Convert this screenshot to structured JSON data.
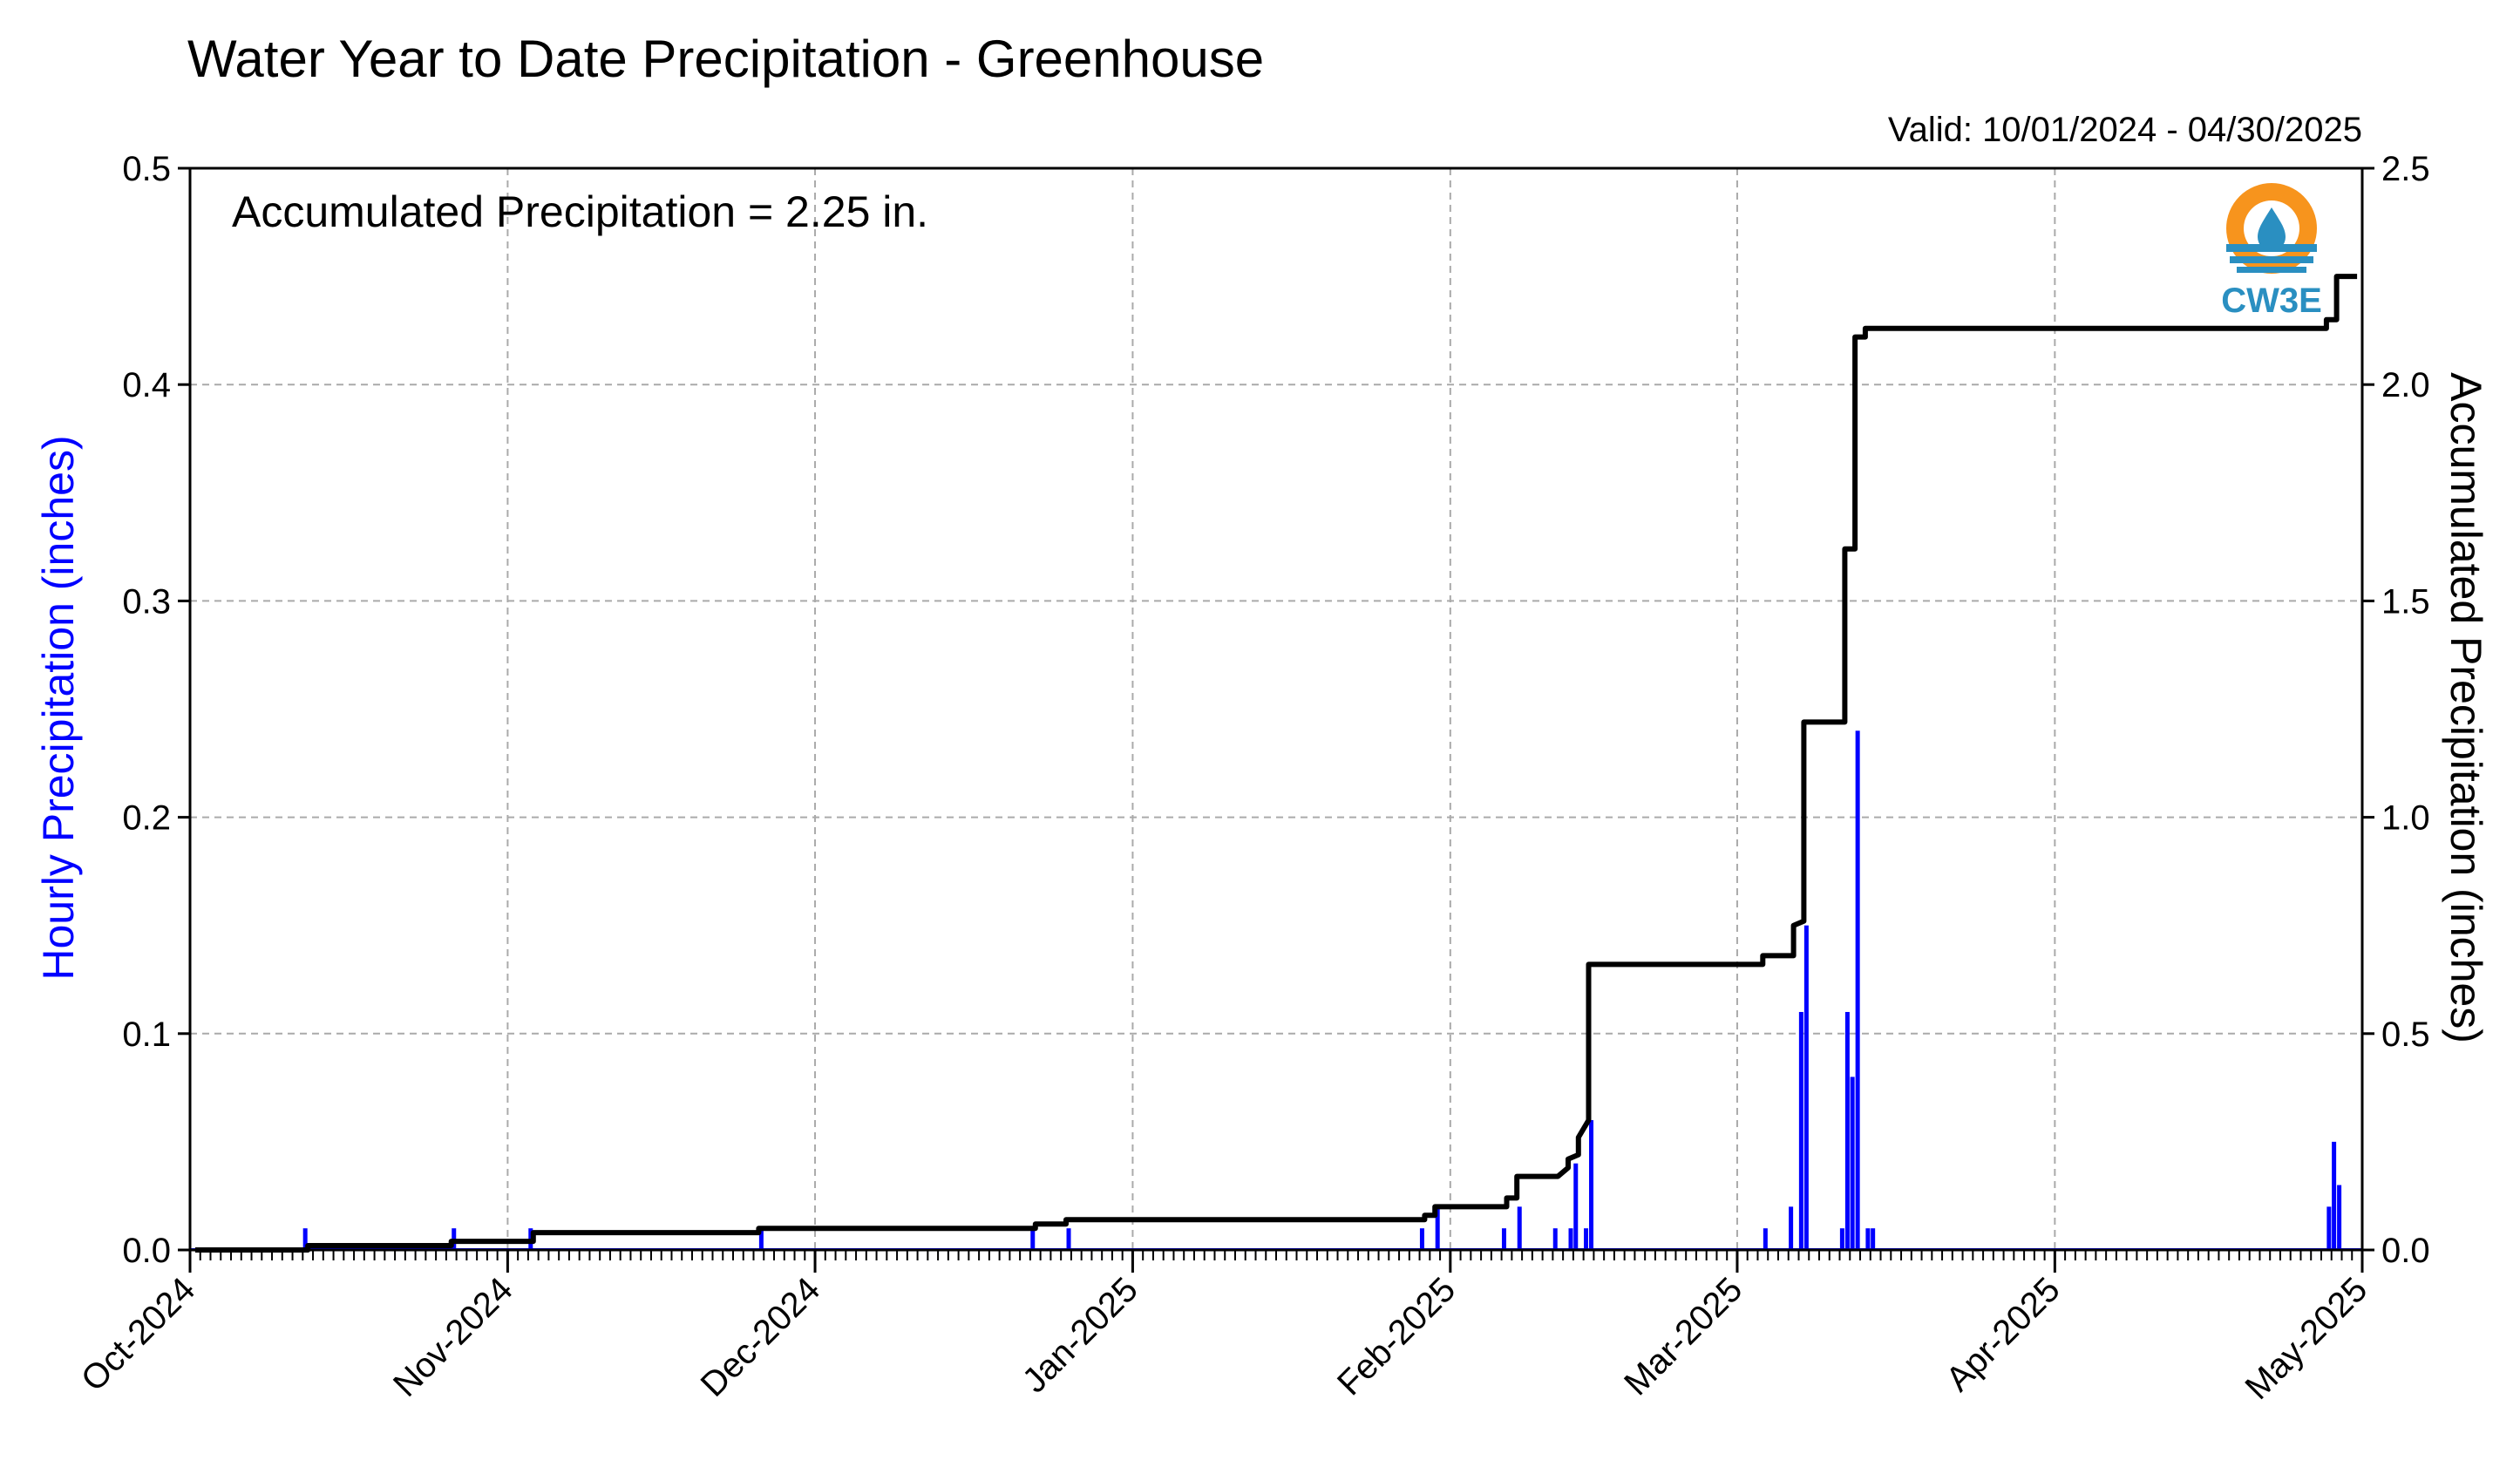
{
  "chart_data": {
    "type": "bar+line",
    "title": "Water Year to Date Precipitation - Greenhouse",
    "valid_range": "Valid: 10/01/2024 - 04/30/2025",
    "annotation": "Accumulated Precipitation = 2.25 in.",
    "ylabel_left": "Hourly Precipitation (inches)",
    "ylabel_right": "Accumulated Precipitation (inches)",
    "ylim_left": [
      0,
      0.5
    ],
    "ylim_right": [
      0,
      2.5
    ],
    "yticks_left": [
      "0.0",
      "0.1",
      "0.2",
      "0.3",
      "0.4",
      "0.5"
    ],
    "yticks_right": [
      "0.0",
      "0.5",
      "1.0",
      "1.5",
      "2.0",
      "2.5"
    ],
    "xlim": [
      "2024-10-01",
      "2025-05-01"
    ],
    "xticks": [
      {
        "date": "2024-10-01",
        "label": "Oct-2024"
      },
      {
        "date": "2024-11-01",
        "label": "Nov-2024"
      },
      {
        "date": "2024-12-01",
        "label": "Dec-2024"
      },
      {
        "date": "2025-01-01",
        "label": "Jan-2025"
      },
      {
        "date": "2025-02-01",
        "label": "Feb-2025"
      },
      {
        "date": "2025-03-01",
        "label": "Mar-2025"
      },
      {
        "date": "2025-04-01",
        "label": "Apr-2025"
      },
      {
        "date": "2025-05-01",
        "label": "May-2025"
      }
    ],
    "grid": true,
    "colors": {
      "hourly": "#0000ff",
      "accumulated": "#000000"
    },
    "hourly_series": [
      {
        "date": "2024-10-12",
        "value": 0.01
      },
      {
        "date": "2024-10-26",
        "value": 0.01
      },
      {
        "date": "2024-11-03",
        "value": 0.01
      },
      {
        "date": "2024-11-25",
        "value": 0.01
      },
      {
        "date": "2024-12-22",
        "value": 0.01
      },
      {
        "date": "2024-12-25",
        "value": 0.01
      },
      {
        "date": "2025-01-29",
        "value": 0.01
      },
      {
        "date": "2025-01-30",
        "value": 0.02
      },
      {
        "date": "2025-02-06",
        "value": 0.01
      },
      {
        "date": "2025-02-07",
        "value": 0.02
      },
      {
        "date": "2025-02-11",
        "value": 0.01
      },
      {
        "date": "2025-02-12",
        "value": 0.01
      },
      {
        "date": "2025-02-13",
        "value": 0.04
      },
      {
        "date": "2025-02-14",
        "value": 0.06
      },
      {
        "date": "2025-02-14",
        "value": 0.01
      },
      {
        "date": "2025-03-03",
        "value": 0.01
      },
      {
        "date": "2025-03-06",
        "value": 0.02
      },
      {
        "date": "2025-03-07",
        "value": 0.15
      },
      {
        "date": "2025-03-07",
        "value": 0.11
      },
      {
        "date": "2025-03-11",
        "value": 0.11
      },
      {
        "date": "2025-03-11",
        "value": 0.01
      },
      {
        "date": "2025-03-12",
        "value": 0.24
      },
      {
        "date": "2025-03-12",
        "value": 0.08
      },
      {
        "date": "2025-03-13",
        "value": 0.01
      },
      {
        "date": "2025-03-14",
        "value": 0.01
      },
      {
        "date": "2025-04-27",
        "value": 0.02
      },
      {
        "date": "2025-04-28",
        "value": 0.05
      },
      {
        "date": "2025-04-28",
        "value": 0.03
      }
    ],
    "accumulated_series": [
      {
        "date": "2024-10-01",
        "value": 0.0
      },
      {
        "date": "2024-10-12",
        "value": 0.0
      },
      {
        "date": "2024-10-12",
        "value": 0.01
      },
      {
        "date": "2024-10-26",
        "value": 0.01
      },
      {
        "date": "2024-10-26",
        "value": 0.02
      },
      {
        "date": "2024-11-03",
        "value": 0.02
      },
      {
        "date": "2024-11-03",
        "value": 0.04
      },
      {
        "date": "2024-11-25",
        "value": 0.04
      },
      {
        "date": "2024-11-25",
        "value": 0.05
      },
      {
        "date": "2024-12-22",
        "value": 0.05
      },
      {
        "date": "2024-12-22",
        "value": 0.06
      },
      {
        "date": "2024-12-25",
        "value": 0.06
      },
      {
        "date": "2024-12-25",
        "value": 0.07
      },
      {
        "date": "2025-01-29",
        "value": 0.07
      },
      {
        "date": "2025-01-29",
        "value": 0.08
      },
      {
        "date": "2025-01-30",
        "value": 0.08
      },
      {
        "date": "2025-01-30",
        "value": 0.1
      },
      {
        "date": "2025-02-06",
        "value": 0.1
      },
      {
        "date": "2025-02-06",
        "value": 0.12
      },
      {
        "date": "2025-02-07",
        "value": 0.12
      },
      {
        "date": "2025-02-07",
        "value": 0.17
      },
      {
        "date": "2025-02-11",
        "value": 0.17
      },
      {
        "date": "2025-02-12",
        "value": 0.19
      },
      {
        "date": "2025-02-12",
        "value": 0.21
      },
      {
        "date": "2025-02-13",
        "value": 0.22
      },
      {
        "date": "2025-02-13",
        "value": 0.26
      },
      {
        "date": "2025-02-14",
        "value": 0.3
      },
      {
        "date": "2025-02-14",
        "value": 0.66
      },
      {
        "date": "2025-03-03",
        "value": 0.66
      },
      {
        "date": "2025-03-03",
        "value": 0.68
      },
      {
        "date": "2025-03-06",
        "value": 0.68
      },
      {
        "date": "2025-03-06",
        "value": 0.75
      },
      {
        "date": "2025-03-07",
        "value": 0.76
      },
      {
        "date": "2025-03-07",
        "value": 1.22
      },
      {
        "date": "2025-03-11",
        "value": 1.22
      },
      {
        "date": "2025-03-11",
        "value": 1.58
      },
      {
        "date": "2025-03-11",
        "value": 1.6
      },
      {
        "date": "2025-03-11",
        "value": 1.62
      },
      {
        "date": "2025-03-12",
        "value": 1.62
      },
      {
        "date": "2025-03-12",
        "value": 2.0
      },
      {
        "date": "2025-03-12",
        "value": 2.11
      },
      {
        "date": "2025-03-13",
        "value": 2.11
      },
      {
        "date": "2025-03-13",
        "value": 2.13
      },
      {
        "date": "2025-04-27",
        "value": 2.13
      },
      {
        "date": "2025-04-27",
        "value": 2.15
      },
      {
        "date": "2025-04-28",
        "value": 2.15
      },
      {
        "date": "2025-04-28",
        "value": 2.25
      },
      {
        "date": "2025-04-30",
        "value": 2.25
      }
    ]
  },
  "logo": {
    "text": "CW3E",
    "colors": {
      "orange": "#f7941d",
      "blue": "#2a8fc1"
    }
  }
}
